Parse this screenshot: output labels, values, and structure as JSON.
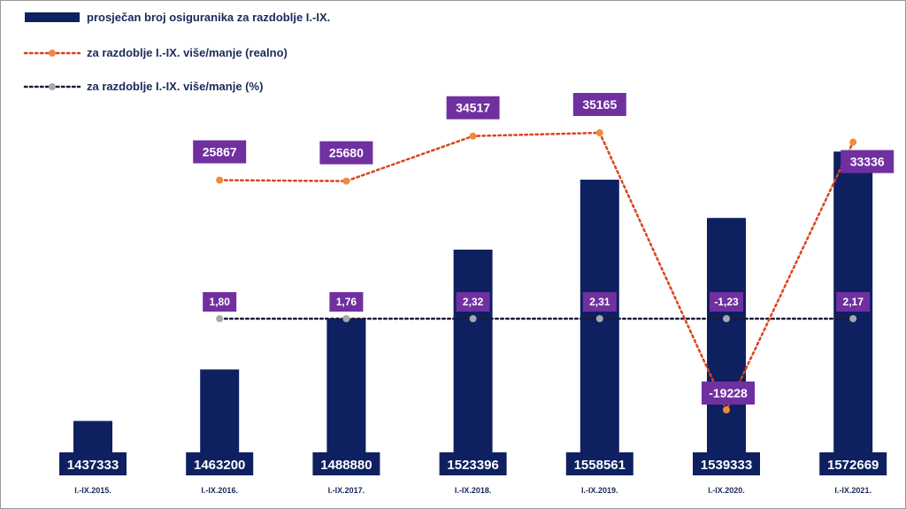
{
  "chart_data": {
    "type": "bar",
    "categories": [
      "I.-IX.2015.",
      "I.-IX.2016.",
      "I.-IX.2017.",
      "I.-IX.2018.",
      "I.-IX.2019.",
      "I.-IX.2020.",
      "I.-IX.2021."
    ],
    "series": [
      {
        "name": "prosječan broj osiguranika za razdoblje I.-IX.",
        "type": "bar",
        "color": "#0f2060",
        "values": [
          1437333,
          1463200,
          1488880,
          1523396,
          1558561,
          1539333,
          1572669
        ],
        "labels": [
          "1437333",
          "1463200",
          "1488880",
          "1523396",
          "1558561",
          "1539333",
          "1572669"
        ]
      },
      {
        "name": "za razdoblje I.-IX. više/manje (realno)",
        "type": "line",
        "color": "#d9441c",
        "marker_color": "#f08a3c",
        "values": [
          null,
          25867,
          25680,
          34517,
          35165,
          -19228,
          33336
        ],
        "labels": [
          "",
          "25867",
          "25680",
          "34517",
          "35165",
          "-19228",
          "33336"
        ]
      },
      {
        "name": "za razdoblje I.-IX. više/manje (%)",
        "type": "line",
        "color": "#1a1a3a",
        "marker_color": "#a8a8a8",
        "values": [
          null,
          1.8,
          1.76,
          2.32,
          2.31,
          -1.23,
          2.17
        ],
        "labels": [
          "",
          "1,80",
          "1,76",
          "2,32",
          "2,31",
          "-1,23",
          "2,17"
        ]
      }
    ],
    "bar_range": [
      1410000,
      1575000
    ],
    "real_range": [
      -25000,
      40000
    ],
    "label_color": "#7030a0",
    "legend_position": "top-left"
  }
}
